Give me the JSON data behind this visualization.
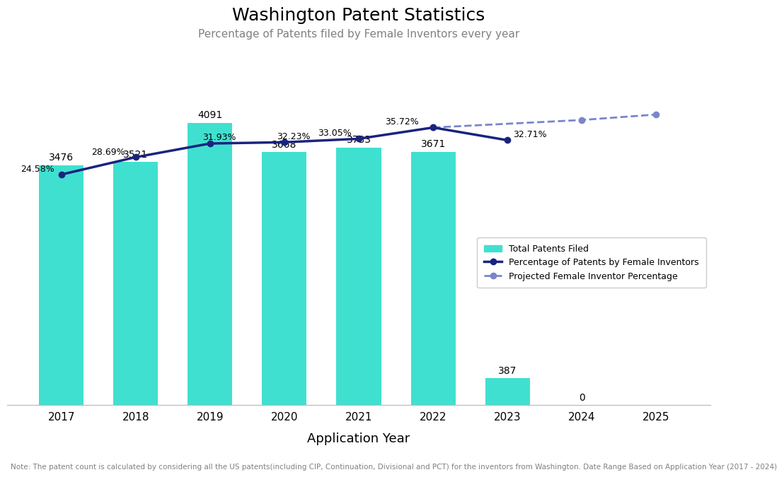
{
  "title": "Washington Patent Statistics",
  "subtitle": "Percentage of Patents filed by Female Inventors every year",
  "footnote": "Note: The patent count is calculated by considering all the US patents(including CIP, Continuation, Divisional and PCT) for the inventors from Washington. Date Range Based on Application Year (2017 - 2024)",
  "years": [
    2017,
    2018,
    2019,
    2020,
    2021,
    2022,
    2023,
    2024,
    2025
  ],
  "bar_values": [
    3476,
    3521,
    4091,
    3668,
    3733,
    3671,
    387,
    0,
    null
  ],
  "actual_pct": [
    24.58,
    28.69,
    31.93,
    32.23,
    33.05,
    35.72,
    32.71,
    null,
    null
  ],
  "projected_pct": [
    null,
    null,
    null,
    null,
    null,
    35.72,
    null,
    37.5,
    38.8
  ],
  "bar_color": "#40E0D0",
  "line_actual_color": "#1a237e",
  "line_projected_color": "#7986cb",
  "xlabel": "Application Year",
  "title_fontsize": 18,
  "subtitle_fontsize": 11,
  "legend_labels": [
    "Total Patents Filed",
    "Percentage of Patents by Female Inventors",
    "Projected Female Inventor Percentage"
  ],
  "bar_ylim": [
    0,
    5200
  ],
  "pct_ylim": [
    -30,
    55
  ]
}
